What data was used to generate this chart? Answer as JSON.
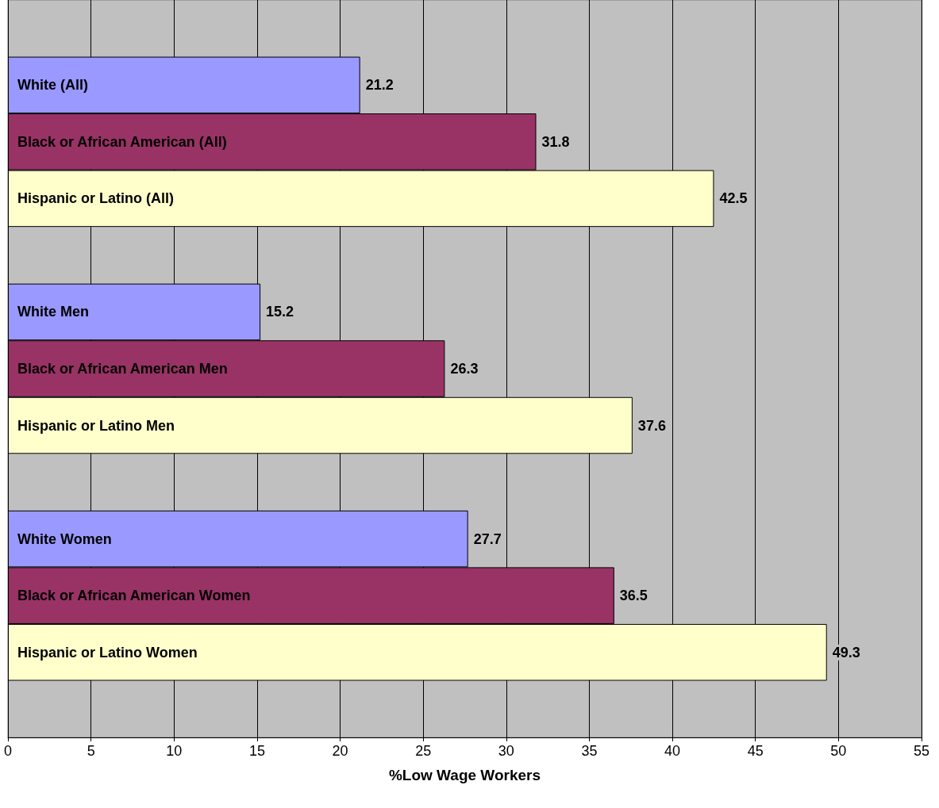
{
  "chart_data": {
    "type": "bar",
    "orientation": "horizontal",
    "xlabel": "%Low Wage Workers",
    "categories": [
      null,
      "White (All)",
      "Black or African American (All)",
      "Hispanic or Latino (All)",
      null,
      "White Men",
      "Black or African American Men",
      "Hispanic or Latino Men",
      null,
      "White Women",
      "Black or African American Women",
      "Hispanic or Latino Women",
      null
    ],
    "values": [
      null,
      21.2,
      31.8,
      42.5,
      null,
      15.2,
      26.3,
      37.6,
      null,
      27.7,
      36.5,
      49.3,
      null
    ],
    "colors": [
      null,
      "#9999ff",
      "#993366",
      "#ffffcc",
      null,
      "#9999ff",
      "#993366",
      "#ffffcc",
      null,
      "#9999ff",
      "#993366",
      "#ffffcc",
      null
    ],
    "xlim": [
      0,
      55
    ],
    "xticks": [
      0,
      5,
      10,
      15,
      20,
      25,
      30,
      35,
      40,
      45,
      50,
      55
    ],
    "grid": "x",
    "data_labels": true
  }
}
